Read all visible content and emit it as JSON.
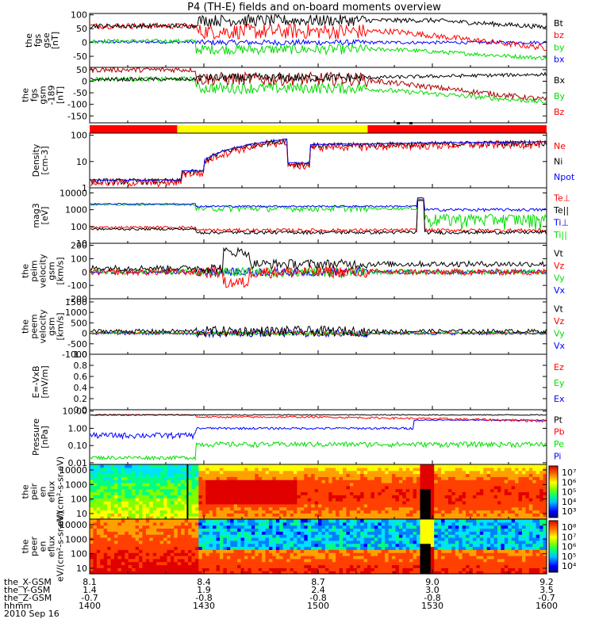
{
  "title": "P4 (TH-E) fields and on-board moments overview",
  "footer": {
    "rows": [
      {
        "label": "the_X-GSM",
        "values": [
          "8.1",
          "8.4",
          "8.7",
          "9.0",
          "9.2"
        ]
      },
      {
        "label": "the_Y-GSM",
        "values": [
          "1.4",
          "1.9",
          "2.4",
          "3.0",
          "3.5"
        ]
      },
      {
        "label": "the_Z-GSM",
        "values": [
          "-0.7",
          "-0.8",
          "-0.8",
          "-0.8",
          "-0.7"
        ]
      },
      {
        "label": "hhmm",
        "values": [
          "1400",
          "1430",
          "1500",
          "1530",
          "1600"
        ]
      }
    ],
    "date": "2010 Sep 16"
  },
  "colorbars": [
    {
      "ticks": [
        "10⁷",
        "10⁶",
        "10⁵",
        "10⁴",
        "10³"
      ]
    },
    {
      "ticks": [
        "10⁸",
        "10⁷",
        "10⁶",
        "10⁵",
        "10⁴"
      ]
    }
  ],
  "colors": {
    "black": "#000000",
    "red": "#ff0000",
    "green": "#00ff00",
    "blue": "#0000ff",
    "bar_red": "#ff0000",
    "bar_yellow": "#ffff00"
  },
  "chart_data": [
    {
      "type": "line",
      "ylabel": "the fgs gse [nT]",
      "yticks": [
        "100",
        "50",
        "0",
        "-50"
      ],
      "ylim": [
        -90,
        105
      ],
      "series": [
        {
          "name": "Bt"
        },
        {
          "name": "bz"
        },
        {
          "name": "by"
        },
        {
          "name": "bx"
        }
      ]
    },
    {
      "type": "line",
      "ylabel": "the fgs gsm -189 [nT]",
      "yticks": [
        "50",
        "0",
        "-50",
        "-100",
        "-150"
      ],
      "ylim": [
        -180,
        60
      ],
      "series": [
        {
          "name": "Bx"
        },
        {
          "name": "By"
        },
        {
          "name": "Bz"
        }
      ]
    },
    {
      "type": "bar",
      "segments": [
        {
          "from": "1400",
          "to": "1423",
          "color": "red"
        },
        {
          "from": "1423",
          "to": "1513",
          "color": "yellow"
        },
        {
          "from": "1513",
          "to": "1600",
          "color": "red"
        }
      ]
    },
    {
      "type": "line",
      "ylabel": "Density [cm-3]",
      "yticks": [
        "100",
        "10",
        "1"
      ],
      "scale": "log",
      "ylim": [
        1,
        120
      ],
      "series": [
        {
          "name": "Ne"
        },
        {
          "name": "Ni"
        },
        {
          "name": "Npot"
        }
      ]
    },
    {
      "type": "line",
      "ylabel": "mag3 [eV]",
      "yticks": [
        "10000",
        "1000",
        "100",
        "10"
      ],
      "scale": "log",
      "ylim": [
        10,
        20000
      ],
      "series": [
        {
          "name": "Te⊥"
        },
        {
          "name": "Te||"
        },
        {
          "name": "Ti⊥"
        },
        {
          "name": "Ti||"
        }
      ]
    },
    {
      "type": "line",
      "ylabel": "the peim velocity gsm [km/s]",
      "yticks": [
        "200",
        "100",
        "0",
        "-100",
        "-200"
      ],
      "ylim": [
        -200,
        215
      ],
      "series": [
        {
          "name": "Vt"
        },
        {
          "name": "Vz"
        },
        {
          "name": "Vy"
        },
        {
          "name": "Vx"
        }
      ]
    },
    {
      "type": "line",
      "ylabel": "the peem velocity gsm [km/s]",
      "yticks": [
        "1500",
        "1000",
        "500",
        "0",
        "-500",
        "-1000"
      ],
      "ylim": [
        -1000,
        1650
      ],
      "series": [
        {
          "name": "Vt"
        },
        {
          "name": "Vz"
        },
        {
          "name": "Vy"
        },
        {
          "name": "Vx"
        }
      ]
    },
    {
      "type": "line",
      "ylabel": "E=-VxB [mV/m]",
      "yticks": [
        "1.0",
        "0.8",
        "0.6",
        "0.4",
        "0.2",
        "0.0"
      ],
      "ylim": [
        0,
        1
      ],
      "series": [
        {
          "name": "Ez"
        },
        {
          "name": "Ey"
        },
        {
          "name": "Ex"
        }
      ]
    },
    {
      "type": "line",
      "ylabel": "Pressure [nPa]",
      "yticks": [
        "10.00",
        "1.00",
        "0.10",
        "0.01"
      ],
      "scale": "log",
      "ylim": [
        0.008,
        12
      ],
      "series": [
        {
          "name": "Pt"
        },
        {
          "name": "Pb"
        },
        {
          "name": "Pe"
        },
        {
          "name": "Pi"
        }
      ]
    },
    {
      "type": "heatmap",
      "ylabel": "the peir en eflux eV/(cm²-s-sr-eV)",
      "yticks": [
        "10000",
        "1000",
        "100",
        "10"
      ],
      "scale": "log"
    },
    {
      "type": "heatmap",
      "ylabel": "the peer en eflux eV/(cm²-s-sr-eV)",
      "yticks": [
        "10000",
        "1000",
        "100",
        "10"
      ],
      "scale": "log"
    }
  ]
}
